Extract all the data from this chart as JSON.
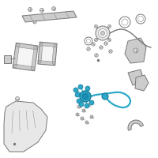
{
  "background_color": "#ffffff",
  "fig_size": [
    2.0,
    2.0
  ],
  "dpi": 100,
  "part_color": "#aaaaaa",
  "part_color_dark": "#777777",
  "part_color_line": "#888888",
  "highlight_color": "#2BA8C8",
  "highlight_edge": "#1A7A9A",
  "lw_main": 0.7,
  "lw_thin": 0.4,
  "lw_highlight": 1.6
}
